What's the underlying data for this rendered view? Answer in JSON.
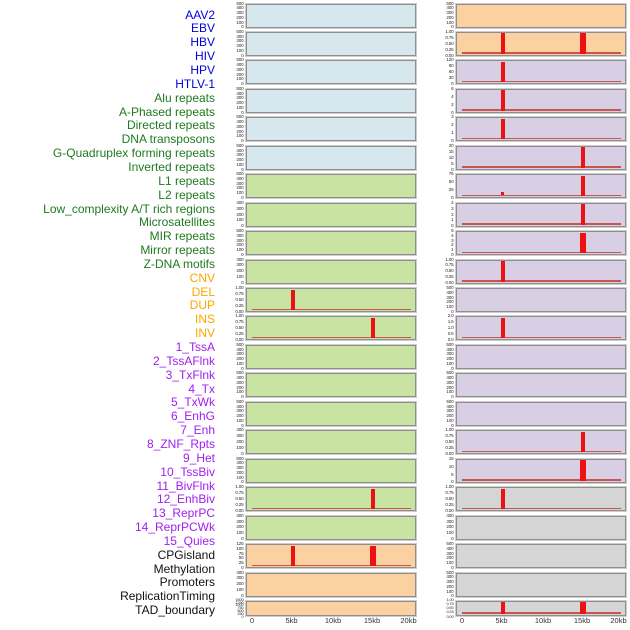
{
  "figure": {
    "description": "Genomic feature track matrix, 44 tracks in 2 columns, x range 0-20kb",
    "background": "#ffffff"
  },
  "colors": {
    "label": {
      "virus": "#0000dd",
      "repeat": "#1f7a1f",
      "sv": "#ffa500",
      "chromhmm": "#a020f0",
      "misc": "#111111"
    },
    "panel": {
      "blue": "#d6e7ee",
      "green": "#c9e3a2",
      "orange": "#fbd1a2",
      "purple": "#d8cfe4",
      "gray": "#d5d5d5"
    },
    "spike": "#ee1111",
    "baseline": "#c8564e",
    "axis_text": "#333333",
    "panel_border": "#8e8e8e"
  },
  "chart_data": {
    "type": "heatmap",
    "subtype": "genome-track-matrix",
    "x_axis": {
      "tick_labels": [
        "0",
        "5kb",
        "10kb",
        "15kb",
        "20kb"
      ],
      "range_bp": [
        0,
        20000
      ]
    },
    "spike_positions_kb": {
      "5kb": 5000,
      "15kb": 15000
    },
    "tracks": [
      {
        "label": "AAV2",
        "group": "virus",
        "bg": "blue",
        "y_ticks": [
          "500",
          "400",
          "300",
          "200",
          "100",
          "0"
        ],
        "baseline": false,
        "spikes": []
      },
      {
        "label": "EBV",
        "group": "virus",
        "bg": "blue",
        "y_ticks": [
          "500",
          "400",
          "300",
          "200",
          "100",
          "0"
        ],
        "baseline": false,
        "spikes": []
      },
      {
        "label": "HBV",
        "group": "virus",
        "bg": "blue",
        "y_ticks": [
          "500",
          "400",
          "300",
          "200",
          "100",
          "0"
        ],
        "baseline": false,
        "spikes": []
      },
      {
        "label": "HIV",
        "group": "virus",
        "bg": "blue",
        "y_ticks": [
          "500",
          "400",
          "300",
          "200",
          "100",
          "0"
        ],
        "baseline": false,
        "spikes": []
      },
      {
        "label": "HPV",
        "group": "virus",
        "bg": "blue",
        "y_ticks": [
          "500",
          "400",
          "300",
          "200",
          "100",
          "0"
        ],
        "baseline": false,
        "spikes": []
      },
      {
        "label": "HTLV-1",
        "group": "virus",
        "bg": "blue",
        "y_ticks": [
          "500",
          "400",
          "300",
          "200",
          "100",
          "0"
        ],
        "baseline": false,
        "spikes": []
      },
      {
        "label": "Alu repeats",
        "group": "repeat",
        "bg": "green",
        "y_ticks": [
          "500",
          "400",
          "300",
          "200",
          "100",
          "0"
        ],
        "baseline": false,
        "spikes": []
      },
      {
        "label": "A-Phased repeats",
        "group": "repeat",
        "bg": "green",
        "y_ticks": [
          "400",
          "300",
          "200",
          "100",
          "0"
        ],
        "baseline": false,
        "spikes": []
      },
      {
        "label": "Directed repeats",
        "group": "repeat",
        "bg": "green",
        "y_ticks": [
          "500",
          "400",
          "300",
          "200",
          "100",
          "0"
        ],
        "baseline": false,
        "spikes": []
      },
      {
        "label": "DNA transposons",
        "group": "repeat",
        "bg": "green",
        "y_ticks": [
          "400",
          "300",
          "200",
          "100",
          "0"
        ],
        "baseline": false,
        "spikes": []
      },
      {
        "label": "G-Quadruplex forming repeats",
        "group": "repeat",
        "bg": "green",
        "y_ticks": [
          "1.00",
          "0.75",
          "0.50",
          "0.25",
          "0.00"
        ],
        "baseline": true,
        "spikes": [
          {
            "pos": "5kb",
            "wide": false
          }
        ]
      },
      {
        "label": "Inverted repeats",
        "group": "repeat",
        "bg": "green",
        "y_ticks": [
          "1.00",
          "0.75",
          "0.50",
          "0.25",
          "0.00"
        ],
        "baseline": true,
        "spikes": [
          {
            "pos": "15kb",
            "wide": false
          }
        ]
      },
      {
        "label": "L1 repeats",
        "group": "repeat",
        "bg": "green",
        "y_ticks": [
          "500",
          "400",
          "300",
          "200",
          "100",
          "0"
        ],
        "baseline": false,
        "spikes": []
      },
      {
        "label": "L2 repeats",
        "group": "repeat",
        "bg": "green",
        "y_ticks": [
          "500",
          "400",
          "300",
          "200",
          "100",
          "0"
        ],
        "baseline": false,
        "spikes": []
      },
      {
        "label": "Low_complexity A/T rich regions",
        "group": "repeat",
        "bg": "green",
        "y_ticks": [
          "500",
          "400",
          "300",
          "200",
          "100",
          "0"
        ],
        "baseline": false,
        "spikes": []
      },
      {
        "label": "Microsatellites",
        "group": "repeat",
        "bg": "green",
        "y_ticks": [
          "400",
          "300",
          "200",
          "100",
          "0"
        ],
        "baseline": false,
        "spikes": []
      },
      {
        "label": "MIR repeats",
        "group": "repeat",
        "bg": "green",
        "y_ticks": [
          "500",
          "400",
          "300",
          "200",
          "100",
          "0"
        ],
        "baseline": false,
        "spikes": []
      },
      {
        "label": "Mirror repeats",
        "group": "repeat",
        "bg": "green",
        "y_ticks": [
          "1.00",
          "0.75",
          "0.50",
          "0.25",
          "0.00"
        ],
        "baseline": true,
        "spikes": [
          {
            "pos": "15kb",
            "wide": false
          }
        ]
      },
      {
        "label": "Z-DNA motifs",
        "group": "repeat",
        "bg": "green",
        "y_ticks": [
          "400",
          "300",
          "200",
          "100",
          "0"
        ],
        "baseline": false,
        "spikes": []
      },
      {
        "label": "CNV",
        "group": "sv",
        "bg": "orange",
        "y_ticks": [
          "125",
          "100",
          "75",
          "50",
          "25",
          "0"
        ],
        "baseline": true,
        "spikes": [
          {
            "pos": "5kb",
            "wide": false
          },
          {
            "pos": "15kb",
            "wide": true
          }
        ]
      },
      {
        "label": "DEL",
        "group": "sv",
        "bg": "orange",
        "y_ticks": [
          "400",
          "300",
          "200",
          "100",
          "0"
        ],
        "baseline": false,
        "spikes": []
      },
      {
        "label": "DUP",
        "group": "sv",
        "bg": "orange",
        "y_ticks": [
          "1500",
          "1250",
          "1000",
          "750",
          "500",
          "250",
          "0"
        ],
        "dense": true,
        "baseline": false,
        "spikes": []
      },
      {
        "label": "INS",
        "group": "sv",
        "bg": "orange",
        "y_ticks": [
          "500",
          "400",
          "300",
          "200",
          "100",
          "0"
        ],
        "baseline": false,
        "spikes": []
      },
      {
        "label": "INV",
        "group": "sv",
        "bg": "orange",
        "y_ticks": [
          "1.00",
          "0.75",
          "0.50",
          "0.25",
          "0.00"
        ],
        "baseline": true,
        "spikes": [
          {
            "pos": "5kb",
            "wide": false
          },
          {
            "pos": "15kb",
            "wide": true
          }
        ]
      },
      {
        "label": "1_TssA",
        "group": "chromhmm",
        "bg": "purple",
        "y_ticks": [
          "120",
          "90",
          "60",
          "30",
          "0"
        ],
        "baseline": true,
        "spikes": [
          {
            "pos": "5kb",
            "wide": false
          }
        ]
      },
      {
        "label": "2_TssAFlnk",
        "group": "chromhmm",
        "bg": "purple",
        "y_ticks": [
          "6",
          "4",
          "2",
          "0"
        ],
        "baseline": true,
        "spikes": [
          {
            "pos": "5kb",
            "wide": false
          }
        ]
      },
      {
        "label": "3_TxFlnk",
        "group": "chromhmm",
        "bg": "purple",
        "y_ticks": [
          "3",
          "2",
          "1",
          "0"
        ],
        "baseline": true,
        "spikes": [
          {
            "pos": "5kb",
            "wide": false
          }
        ]
      },
      {
        "label": "4_Tx",
        "group": "chromhmm",
        "bg": "purple",
        "y_ticks": [
          "20",
          "15",
          "10",
          "5",
          "0"
        ],
        "baseline": true,
        "spikes": [
          {
            "pos": "15kb",
            "wide": false
          }
        ]
      },
      {
        "label": "5_TxWk",
        "group": "chromhmm",
        "bg": "purple",
        "y_ticks": [
          "75",
          "50",
          "25",
          "0"
        ],
        "baseline": true,
        "spikes": [
          {
            "pos": "15kb",
            "wide": false
          }
        ],
        "bumps": [
          "5kb"
        ]
      },
      {
        "label": "6_EnhG",
        "group": "chromhmm",
        "bg": "purple",
        "y_ticks": [
          "4",
          "3",
          "2",
          "1",
          "0"
        ],
        "baseline": true,
        "spikes": [
          {
            "pos": "15kb",
            "wide": false
          }
        ]
      },
      {
        "label": "7_Enh",
        "group": "chromhmm",
        "bg": "purple",
        "y_ticks": [
          "5",
          "4",
          "3",
          "2",
          "1",
          "0"
        ],
        "baseline": true,
        "spikes": [
          {
            "pos": "15kb",
            "wide": true
          }
        ]
      },
      {
        "label": "8_ZNF_Rpts",
        "group": "chromhmm",
        "bg": "purple",
        "y_ticks": [
          "1.00",
          "0.75",
          "0.50",
          "0.25",
          "0.00"
        ],
        "baseline": true,
        "spikes": [
          {
            "pos": "5kb",
            "wide": false
          }
        ]
      },
      {
        "label": "9_Het",
        "group": "chromhmm",
        "bg": "purple",
        "y_ticks": [
          "500",
          "400",
          "300",
          "200",
          "100",
          "0"
        ],
        "baseline": false,
        "spikes": []
      },
      {
        "label": "10_TssBiv",
        "group": "chromhmm",
        "bg": "purple",
        "y_ticks": [
          "2.0",
          "1.5",
          "1.0",
          "0.5",
          "0.0"
        ],
        "baseline": true,
        "spikes": [
          {
            "pos": "5kb",
            "wide": false
          }
        ]
      },
      {
        "label": "11_BivFlnk",
        "group": "chromhmm",
        "bg": "purple",
        "y_ticks": [
          "500",
          "400",
          "300",
          "200",
          "100",
          "0"
        ],
        "baseline": false,
        "spikes": []
      },
      {
        "label": "12_EnhBiv",
        "group": "chromhmm",
        "bg": "purple",
        "y_ticks": [
          "500",
          "400",
          "300",
          "200",
          "100",
          "0"
        ],
        "baseline": false,
        "spikes": []
      },
      {
        "label": "13_ReprPC",
        "group": "chromhmm",
        "bg": "purple",
        "y_ticks": [
          "500",
          "400",
          "300",
          "200",
          "100",
          "0"
        ],
        "baseline": false,
        "spikes": []
      },
      {
        "label": "14_ReprPCWk",
        "group": "chromhmm",
        "bg": "purple",
        "y_ticks": [
          "1.00",
          "0.75",
          "0.50",
          "0.25",
          "0.00"
        ],
        "baseline": true,
        "spikes": [
          {
            "pos": "15kb",
            "wide": false
          }
        ]
      },
      {
        "label": "15_Quies",
        "group": "chromhmm",
        "bg": "purple",
        "y_ticks": [
          "15",
          "10",
          "5",
          "0"
        ],
        "baseline": true,
        "spikes": [
          {
            "pos": "15kb",
            "wide": true
          }
        ]
      },
      {
        "label": "CPGisland",
        "group": "misc",
        "bg": "gray",
        "y_ticks": [
          "1.00",
          "0.75",
          "0.50",
          "0.25",
          "0.00"
        ],
        "baseline": true,
        "spikes": [
          {
            "pos": "5kb",
            "wide": false
          }
        ]
      },
      {
        "label": "Methylation",
        "group": "misc",
        "bg": "gray",
        "y_ticks": [
          "400",
          "300",
          "200",
          "100",
          "0"
        ],
        "baseline": false,
        "spikes": []
      },
      {
        "label": "Promoters",
        "group": "misc",
        "bg": "gray",
        "y_ticks": [
          "500",
          "400",
          "300",
          "200",
          "100",
          "0"
        ],
        "baseline": false,
        "spikes": []
      },
      {
        "label": "ReplicationTiming",
        "group": "misc",
        "bg": "gray",
        "y_ticks": [
          "500",
          "400",
          "300",
          "200",
          "100",
          "0"
        ],
        "baseline": false,
        "spikes": []
      },
      {
        "label": "TAD_boundary",
        "group": "misc",
        "bg": "gray",
        "y_ticks": [
          "1.00",
          "0.75",
          "0.50",
          "0.25",
          "0.00"
        ],
        "dense": true,
        "baseline": true,
        "spikes": [
          {
            "pos": "5kb",
            "wide": false
          },
          {
            "pos": "15kb",
            "wide": true
          }
        ]
      }
    ]
  }
}
